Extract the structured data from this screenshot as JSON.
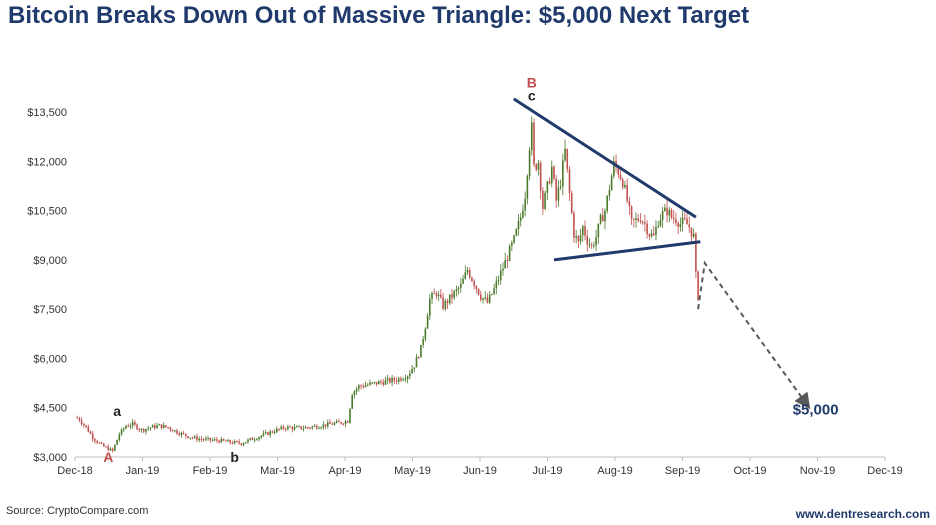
{
  "chart_data": {
    "type": "candlestick",
    "title": "Bitcoin Breaks Down Out of Massive Triangle: $5,000 Next Target",
    "ylim": [
      3000,
      14500
    ],
    "y_ticks": [
      3000,
      4500,
      6000,
      7500,
      9000,
      10500,
      12000,
      13500
    ],
    "y_tick_labels": [
      "$3,000",
      "$4,500",
      "$6,000",
      "$7,500",
      "$9,000",
      "$10,500",
      "$12,000",
      "$13,500"
    ],
    "x_tick_labels": [
      "Dec-18",
      "Jan-19",
      "Feb-19",
      "Mar-19",
      "Apr-19",
      "May-19",
      "Jun-19",
      "Jul-19",
      "Aug-19",
      "Sep-19",
      "Oct-19",
      "Nov-19",
      "Dec-19"
    ],
    "grid": false,
    "up_color": "#4a7a2a",
    "down_color": "#c0504d",
    "price_path": [
      [
        0,
        4200
      ],
      [
        2,
        4150
      ],
      [
        5,
        3900
      ],
      [
        8,
        3600
      ],
      [
        12,
        3350
      ],
      [
        15,
        3250
      ],
      [
        17,
        3180
      ],
      [
        20,
        3700
      ],
      [
        23,
        3950
      ],
      [
        26,
        4000
      ],
      [
        30,
        3820
      ],
      [
        34,
        3900
      ],
      [
        38,
        3950
      ],
      [
        42,
        3900
      ],
      [
        46,
        3760
      ],
      [
        50,
        3650
      ],
      [
        55,
        3560
      ],
      [
        60,
        3520
      ],
      [
        65,
        3500
      ],
      [
        70,
        3450
      ],
      [
        75,
        3420
      ],
      [
        78,
        3500
      ],
      [
        82,
        3600
      ],
      [
        86,
        3700
      ],
      [
        90,
        3800
      ],
      [
        95,
        3900
      ],
      [
        100,
        3880
      ],
      [
        105,
        3900
      ],
      [
        110,
        3950
      ],
      [
        115,
        4000
      ],
      [
        120,
        4050
      ],
      [
        123,
        4100
      ],
      [
        125,
        4950
      ],
      [
        128,
        5150
      ],
      [
        132,
        5200
      ],
      [
        136,
        5250
      ],
      [
        140,
        5300
      ],
      [
        145,
        5350
      ],
      [
        150,
        5500
      ],
      [
        153,
        5800
      ],
      [
        156,
        6300
      ],
      [
        158,
        7000
      ],
      [
        160,
        7800
      ],
      [
        163,
        8000
      ],
      [
        166,
        7600
      ],
      [
        170,
        7900
      ],
      [
        174,
        8200
      ],
      [
        177,
        8700
      ],
      [
        180,
        8300
      ],
      [
        183,
        7900
      ],
      [
        186,
        7700
      ],
      [
        189,
        8100
      ],
      [
        192,
        8600
      ],
      [
        195,
        9100
      ],
      [
        198,
        9600
      ],
      [
        201,
        10300
      ],
      [
        203,
        11000
      ],
      [
        205,
        12500
      ],
      [
        206,
        13000
      ],
      [
        207,
        11800
      ],
      [
        209,
        12000
      ],
      [
        211,
        10600
      ],
      [
        213,
        11200
      ],
      [
        215,
        11800
      ],
      [
        217,
        10800
      ],
      [
        219,
        11400
      ],
      [
        221,
        12300
      ],
      [
        223,
        11000
      ],
      [
        225,
        9800
      ],
      [
        227,
        9500
      ],
      [
        229,
        10000
      ],
      [
        231,
        9600
      ],
      [
        233,
        9400
      ],
      [
        235,
        9700
      ],
      [
        237,
        10200
      ],
      [
        239,
        10500
      ],
      [
        241,
        11200
      ],
      [
        243,
        11900
      ],
      [
        245,
        11700
      ],
      [
        247,
        11400
      ],
      [
        249,
        10800
      ],
      [
        251,
        10100
      ],
      [
        253,
        10200
      ],
      [
        255,
        10300
      ],
      [
        257,
        10100
      ],
      [
        259,
        9800
      ],
      [
        261,
        9700
      ],
      [
        263,
        10200
      ],
      [
        265,
        10400
      ],
      [
        267,
        10500
      ],
      [
        269,
        10300
      ],
      [
        271,
        10250
      ],
      [
        273,
        10100
      ],
      [
        275,
        10150
      ],
      [
        277,
        10000
      ],
      [
        279,
        9700
      ],
      [
        280,
        8500
      ],
      [
        281,
        7900
      ]
    ],
    "projection": [
      [
        281,
        7500
      ],
      [
        284,
        8900
      ],
      [
        330,
        4600
      ]
    ],
    "triangle_upper": [
      [
        206,
        13900
      ],
      [
        280,
        10300
      ]
    ],
    "triangle_lower": [
      [
        216,
        9000
      ],
      [
        282,
        9550
      ]
    ],
    "wave_labels": [
      {
        "text": "A",
        "x": 15,
        "y": 3000,
        "color": "#c0504d"
      },
      {
        "text": "a",
        "x": 19,
        "y": 4400,
        "color": "#222222"
      },
      {
        "text": "b",
        "x": 72,
        "y": 3000,
        "color": "#222222"
      },
      {
        "text": "c",
        "x": 206,
        "y": 14000,
        "color": "#222222"
      },
      {
        "text": "B",
        "x": 206,
        "y": 14400,
        "color": "#c0504d"
      }
    ],
    "annotations": [
      {
        "text": "$5,000",
        "x": 334,
        "y": 4300,
        "color": "#1f3a6b"
      }
    ]
  },
  "footer": {
    "source": "Source: CryptoCompare.com",
    "site": "www.dentresearch.com"
  }
}
